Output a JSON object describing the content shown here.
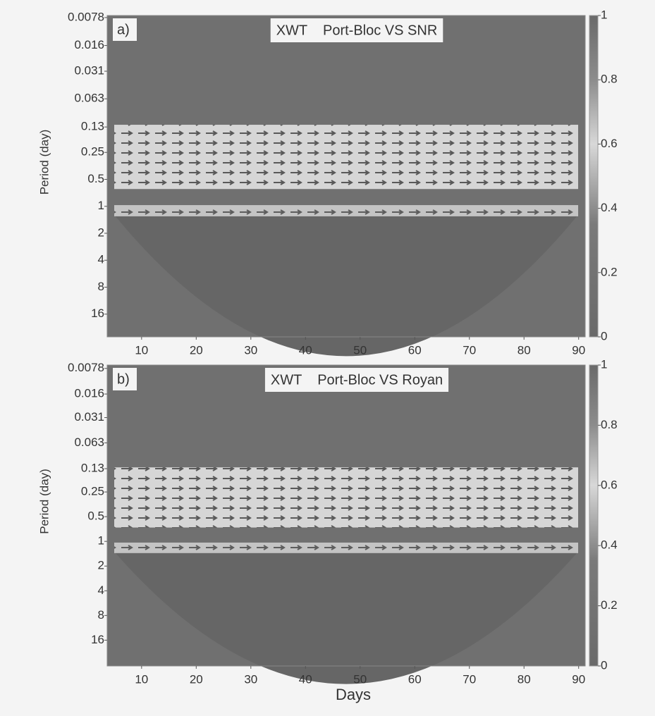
{
  "chart_data": [
    {
      "type": "heatmap",
      "panel_label": "a)",
      "title": "XWT    Port-Bloc VS SNR",
      "ylabel": "Period (day)",
      "yscale": "log",
      "ylim": [
        28.7,
        0.0074
      ],
      "yticks": [
        0.0078,
        0.016,
        0.031,
        0.063,
        0.13,
        0.25,
        0.5,
        1,
        2,
        4,
        8,
        16
      ],
      "xlim": [
        3.7,
        91.2
      ],
      "xticks": [
        10,
        20,
        30,
        40,
        50,
        60,
        70,
        80,
        90
      ],
      "clim": [
        0,
        1
      ],
      "cticks": [
        0,
        0.2,
        0.4,
        0.6,
        0.8,
        1
      ]
    },
    {
      "type": "heatmap",
      "panel_label": "b)",
      "title": "XWT    Port-Bloc VS Royan",
      "ylabel": "Period (day)",
      "xlabel": "Days",
      "yscale": "log",
      "ylim": [
        33,
        0.0071
      ],
      "yticks": [
        0.0078,
        0.016,
        0.031,
        0.063,
        0.13,
        0.25,
        0.5,
        1,
        2,
        4,
        8,
        16
      ],
      "xlim": [
        3.7,
        91.2
      ],
      "xticks": [
        10,
        20,
        30,
        40,
        50,
        60,
        70,
        80,
        90
      ],
      "clim": [
        0,
        1
      ],
      "cticks": [
        0,
        0.2,
        0.4,
        0.6,
        0.8,
        1
      ]
    }
  ]
}
